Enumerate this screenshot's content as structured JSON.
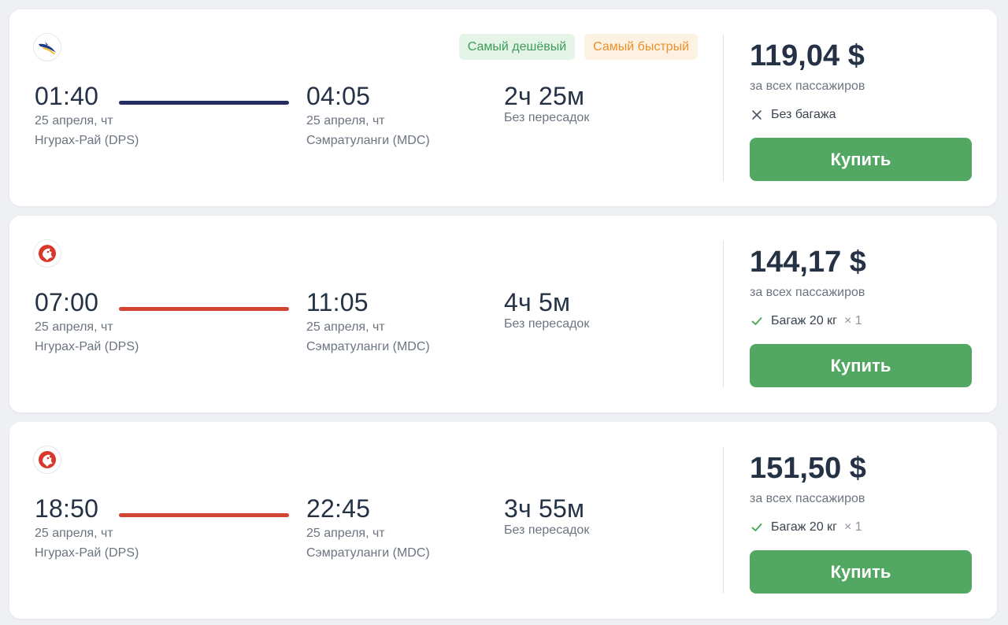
{
  "colors": {
    "buy_button": "#52a862",
    "badge_cheap_bg": "#e4f5e8",
    "badge_cheap_text": "#3e9a56",
    "badge_fast_bg": "#fdf1e1",
    "badge_fast_text": "#e8902a"
  },
  "flights": [
    {
      "airline_logo": "blue-bird-logo-icon",
      "badges": {
        "cheapest": "Самый дешёвый",
        "fastest": "Самый быстрый"
      },
      "line_color": "#262d63",
      "departure": {
        "time": "01:40",
        "date": "25 апреля, чт",
        "airport": "Нгурах-Рай (DPS)"
      },
      "arrival": {
        "time": "04:05",
        "date": "25 апреля, чт",
        "airport": "Сэмратуланги (MDC)"
      },
      "duration": "2ч 25м",
      "stops": "Без пересадок",
      "price": "119,04 $",
      "price_note": "за всех пассажиров",
      "baggage": {
        "icon": "close-icon",
        "label": "Без багажа",
        "multiplier": ""
      },
      "buy_label": "Купить"
    },
    {
      "airline_logo": "red-lion-logo-icon",
      "line_color": "#d24434",
      "departure": {
        "time": "07:00",
        "date": "25 апреля, чт",
        "airport": "Нгурах-Рай (DPS)"
      },
      "arrival": {
        "time": "11:05",
        "date": "25 апреля, чт",
        "airport": "Сэмратуланги (MDC)"
      },
      "duration": "4ч 5м",
      "stops": "Без пересадок",
      "price": "144,17 $",
      "price_note": "за всех пассажиров",
      "baggage": {
        "icon": "check-icon",
        "label": "Багаж 20 кг",
        "multiplier": "× 1"
      },
      "buy_label": "Купить"
    },
    {
      "airline_logo": "red-lion-logo-icon",
      "line_color": "#d24434",
      "departure": {
        "time": "18:50",
        "date": "25 апреля, чт",
        "airport": "Нгурах-Рай (DPS)"
      },
      "arrival": {
        "time": "22:45",
        "date": "25 апреля, чт",
        "airport": "Сэмратуланги (MDC)"
      },
      "duration": "3ч 55м",
      "stops": "Без пересадок",
      "price": "151,50 $",
      "price_note": "за всех пассажиров",
      "baggage": {
        "icon": "check-icon",
        "label": "Багаж 20 кг",
        "multiplier": "× 1"
      },
      "buy_label": "Купить"
    }
  ]
}
